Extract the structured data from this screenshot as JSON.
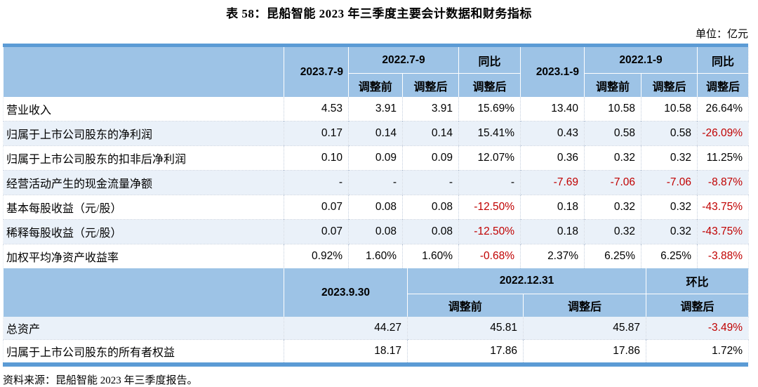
{
  "title": "表 58：昆船智能 2023 年三季度主要会计数据和财务指标",
  "unit_label": "单位：亿元",
  "source": "资料来源：昆船智能 2023 年三季度报告。",
  "colors": {
    "header_bg": "#9DC3E6",
    "accent_bar": "#5B9BD5",
    "alt_row_bg": "#EAF1F9",
    "negative_value": "#C00000"
  },
  "quarter_table": {
    "header": {
      "current_quarter": "2023.7-9",
      "prior_quarter_group": "2022.7-9",
      "yoy_group_1": "同比",
      "current_ytd": "2023.1-9",
      "prior_ytd_group": "2022.1-9",
      "yoy_group_2": "同比",
      "subs": [
        "调整前",
        "调整后",
        "调整后",
        "调整前",
        "调整后",
        "调整后"
      ]
    },
    "rows": [
      {
        "label": "营业收入",
        "values": [
          "4.53",
          "3.91",
          "3.91",
          "15.69%",
          "13.40",
          "10.58",
          "10.58",
          "26.64%"
        ]
      },
      {
        "label": "归属于上市公司股东的净利润",
        "values": [
          "0.17",
          "0.14",
          "0.14",
          "15.41%",
          "0.43",
          "0.58",
          "0.58",
          "-26.09%"
        ]
      },
      {
        "label": "归属于上市公司股东的扣非后净利润",
        "values": [
          "0.10",
          "0.09",
          "0.09",
          "12.07%",
          "0.36",
          "0.32",
          "0.32",
          "11.25%"
        ]
      },
      {
        "label": "经营活动产生的现金流量净额",
        "values": [
          "-",
          "-",
          "-",
          "-",
          "-7.69",
          "-7.06",
          "-7.06",
          "-8.87%"
        ]
      },
      {
        "label": "基本每股收益（元/股）",
        "values": [
          "0.07",
          "0.08",
          "0.08",
          "-12.50%",
          "0.18",
          "0.32",
          "0.32",
          "-43.75%"
        ]
      },
      {
        "label": "稀释每股收益（元/股）",
        "values": [
          "0.07",
          "0.08",
          "0.08",
          "-12.50%",
          "0.18",
          "0.32",
          "0.32",
          "-43.75%"
        ]
      },
      {
        "label": "加权平均净资产收益率",
        "values": [
          "0.92%",
          "1.60%",
          "1.60%",
          "-0.68%",
          "2.37%",
          "6.25%",
          "6.25%",
          "-3.88%"
        ]
      }
    ]
  },
  "balance_table": {
    "header": {
      "current_date": "2023.9.30",
      "prior_date_group": "2022.12.31",
      "qoq_group": "环比",
      "subs": [
        "调整前",
        "调整后",
        "调整后"
      ]
    },
    "rows": [
      {
        "label": "总资产",
        "values": [
          "44.27",
          "45.81",
          "45.87",
          "-3.49%"
        ]
      },
      {
        "label": "归属于上市公司股东的所有者权益",
        "values": [
          "18.17",
          "17.86",
          "17.86",
          "1.72%"
        ]
      }
    ]
  }
}
